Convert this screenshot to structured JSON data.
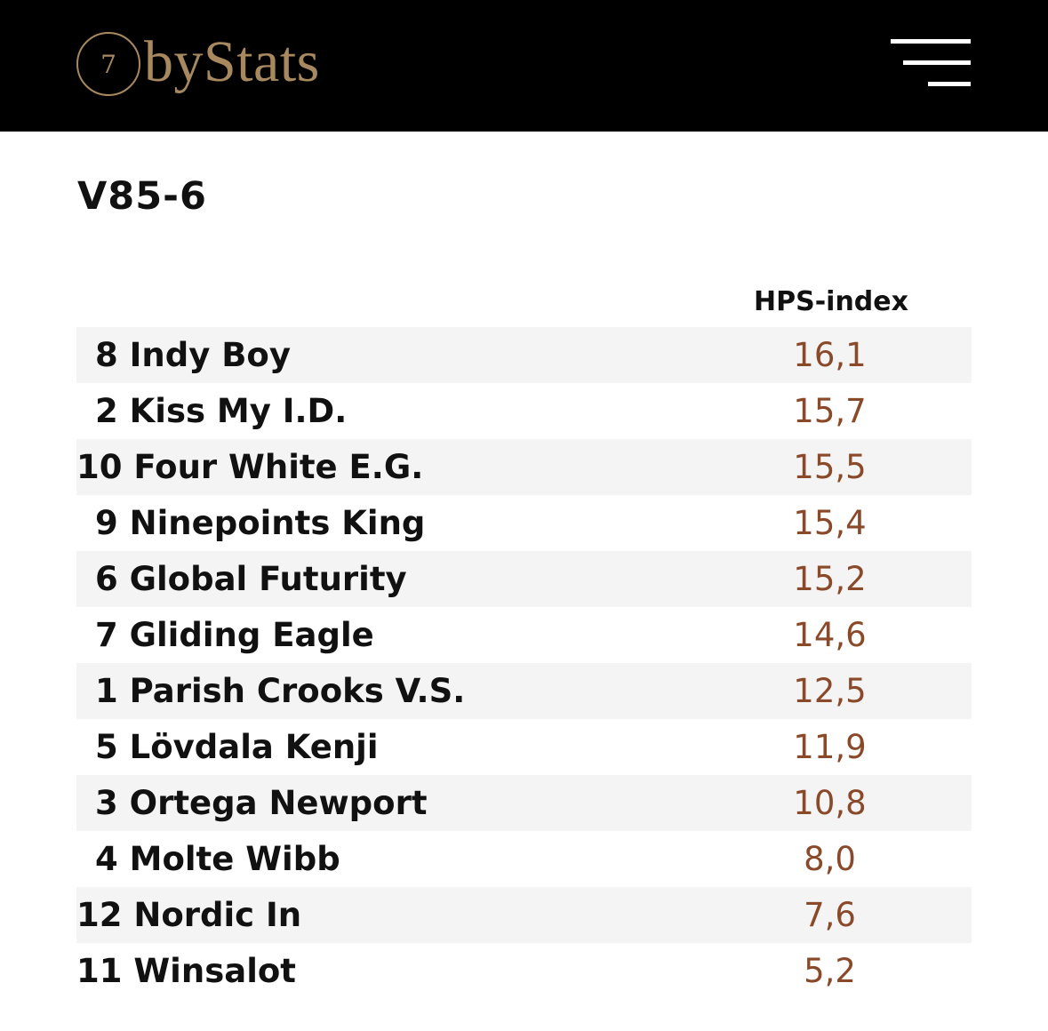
{
  "header": {
    "logo_number": "7",
    "logo_text": "byStats"
  },
  "race": {
    "title": "V85-6",
    "column_header": "HPS-index",
    "rows": [
      {
        "number": "8",
        "name": "Indy Boy",
        "index": "16,1"
      },
      {
        "number": "2",
        "name": "Kiss My I.D.",
        "index": "15,7"
      },
      {
        "number": "10",
        "name": "Four White E.G.",
        "index": "15,5"
      },
      {
        "number": "9",
        "name": "Ninepoints King",
        "index": "15,4"
      },
      {
        "number": "6",
        "name": "Global Futurity",
        "index": "15,2"
      },
      {
        "number": "7",
        "name": "Gliding Eagle",
        "index": "14,6"
      },
      {
        "number": "1",
        "name": "Parish Crooks V.S.",
        "index": "12,5"
      },
      {
        "number": "5",
        "name": "Lövdala Kenji",
        "index": "11,9"
      },
      {
        "number": "3",
        "name": "Ortega Newport",
        "index": "10,8"
      },
      {
        "number": "4",
        "name": "Molte Wibb",
        "index": "8,0"
      },
      {
        "number": "12",
        "name": "Nordic In",
        "index": "7,6"
      },
      {
        "number": "11",
        "name": "Winsalot",
        "index": "5,2"
      }
    ]
  },
  "colors": {
    "header_bg": "#000000",
    "logo_gold": "#a8895f",
    "value_brown": "#8a4a2a",
    "row_shade": "#f4f4f4"
  }
}
